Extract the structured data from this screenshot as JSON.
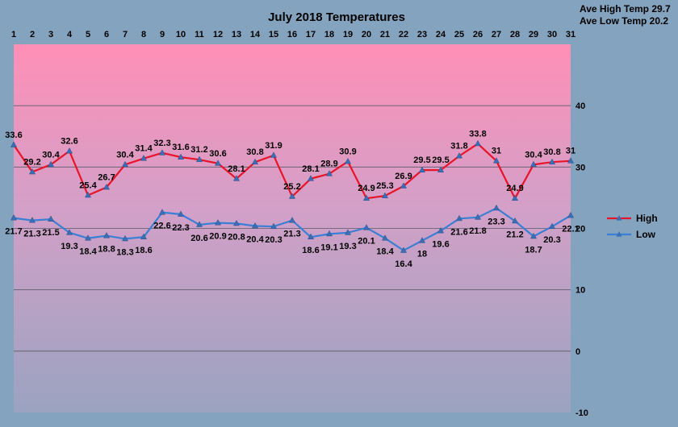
{
  "chart_data": {
    "type": "line",
    "title": "July 2018 Temperatures",
    "ave_high_label": "Ave High Temp 29.7",
    "ave_low_label": "Ave Low Temp 20.2",
    "x": [
      1,
      2,
      3,
      4,
      5,
      6,
      7,
      8,
      9,
      10,
      11,
      12,
      13,
      14,
      15,
      16,
      17,
      18,
      19,
      20,
      21,
      22,
      23,
      24,
      25,
      26,
      27,
      28,
      29,
      30,
      31
    ],
    "ylim": [
      -10,
      50
    ],
    "yticks": [
      -10,
      0,
      10,
      20,
      30,
      40
    ],
    "grid": true,
    "legend_position": "right",
    "series": [
      {
        "name": "High",
        "color": "#e8142a",
        "values": [
          33.6,
          29.2,
          30.4,
          32.6,
          25.4,
          26.7,
          30.4,
          31.4,
          32.3,
          31.6,
          31.2,
          30.6,
          28.1,
          30.8,
          31.9,
          25.2,
          28.1,
          28.9,
          30.9,
          24.9,
          25.3,
          26.9,
          29.5,
          29.5,
          31.8,
          33.8,
          31,
          24.9,
          30.4,
          30.8,
          31
        ]
      },
      {
        "name": "Low",
        "color": "#3b7fd4",
        "values": [
          21.7,
          21.3,
          21.5,
          19.3,
          18.4,
          18.8,
          18.3,
          18.6,
          22.6,
          22.3,
          20.6,
          20.9,
          20.8,
          20.4,
          20.3,
          21.3,
          18.6,
          19.1,
          19.3,
          20.1,
          18.4,
          16.4,
          18,
          19.6,
          21.6,
          21.8,
          23.3,
          21.2,
          18.7,
          20.3,
          22.1
        ]
      }
    ]
  }
}
